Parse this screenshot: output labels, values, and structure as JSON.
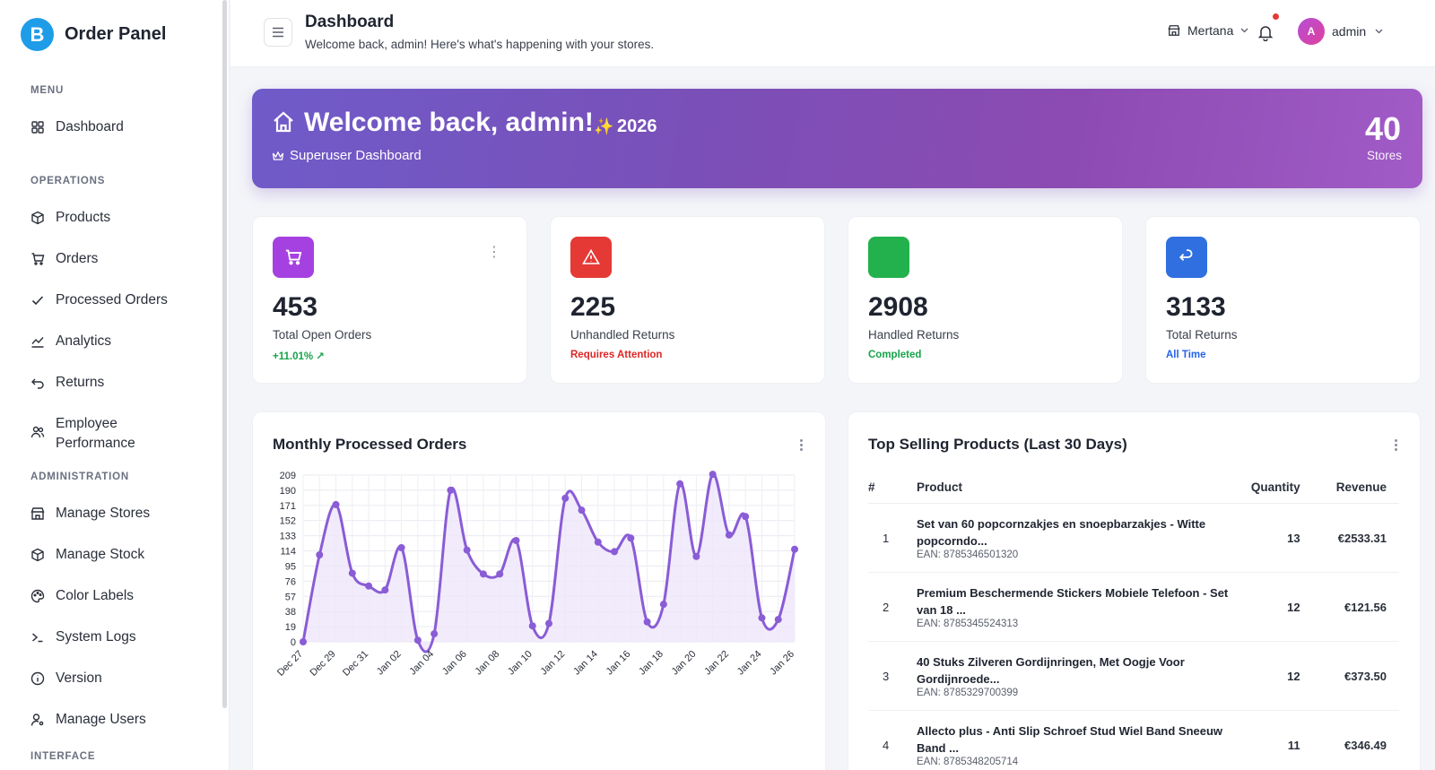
{
  "brand": {
    "logo_letter": "B",
    "name": "Order Panel"
  },
  "sidebar": {
    "sections": [
      {
        "label": "MENU"
      },
      {
        "label": "OPERATIONS"
      },
      {
        "label": "ADMINISTRATION"
      },
      {
        "label": "INTERFACE"
      }
    ],
    "items": [
      {
        "label": "Dashboard",
        "icon": "grid-icon"
      },
      {
        "label": "Products",
        "icon": "box-icon"
      },
      {
        "label": "Orders",
        "icon": "cart-icon"
      },
      {
        "label": "Processed Orders",
        "icon": "check-icon"
      },
      {
        "label": "Analytics",
        "icon": "chart-icon"
      },
      {
        "label": "Returns",
        "icon": "return-icon"
      },
      {
        "label": "Employee Performance",
        "icon": "users-icon"
      },
      {
        "label": "Manage Stores",
        "icon": "store-icon"
      },
      {
        "label": "Manage Stock",
        "icon": "box-icon"
      },
      {
        "label": "Color Labels",
        "icon": "palette-icon"
      },
      {
        "label": "System Logs",
        "icon": "terminal-icon"
      },
      {
        "label": "Version",
        "icon": "info-icon"
      },
      {
        "label": "Manage Users",
        "icon": "user-gear-icon"
      }
    ]
  },
  "header": {
    "title": "Dashboard",
    "subtitle": "Welcome back, admin! Here's what's happening with your stores.",
    "store": "Mertana",
    "user_initial": "A",
    "user": "admin"
  },
  "banner": {
    "title": "Welcome back, admin!",
    "sparkle": "✨",
    "year": "2026",
    "subtitle": "Superuser Dashboard",
    "count": "40",
    "count_label": "Stores"
  },
  "stats": [
    {
      "value": "453",
      "label": "Total Open Orders",
      "note": "+11.01% ↗",
      "note_color": "#16a34a",
      "icon_bg": "#a541e0"
    },
    {
      "value": "225",
      "label": "Unhandled Returns",
      "note": "Requires Attention",
      "note_color": "#dc2626",
      "icon_bg": "#e53935"
    },
    {
      "value": "2908",
      "label": "Handled Returns",
      "note": "Completed",
      "note_color": "#16a34a",
      "icon_bg": "#22b14c"
    },
    {
      "value": "3133",
      "label": "Total Returns",
      "note": "All Time",
      "note_color": "#2563eb",
      "icon_bg": "#2f6fe0"
    }
  ],
  "chart_panel": {
    "title": "Monthly Processed Orders"
  },
  "chart_data": {
    "type": "line",
    "title": "Monthly Processed Orders",
    "xlabel": "",
    "ylabel": "",
    "yticks": [
      0,
      19,
      38,
      57,
      76,
      95,
      114,
      133,
      152,
      171,
      190,
      209
    ],
    "ylim": [
      0,
      209
    ],
    "xticks": [
      "Dec 27",
      "Dec 29",
      "Dec 31",
      "Jan 02",
      "Jan 04",
      "Jan 06",
      "Jan 08",
      "Jan 10",
      "Jan 12",
      "Jan 14",
      "Jan 16",
      "Jan 18",
      "Jan 20",
      "Jan 22",
      "Jan 24",
      "Jan 26"
    ],
    "x": [
      "Dec 27",
      "Dec 28",
      "Dec 29",
      "Dec 30",
      "Dec 31",
      "Jan 01",
      "Jan 02",
      "Jan 03",
      "Jan 04",
      "Jan 05",
      "Jan 06",
      "Jan 07",
      "Jan 08",
      "Jan 09",
      "Jan 10",
      "Jan 11",
      "Jan 12",
      "Jan 13",
      "Jan 14",
      "Jan 15",
      "Jan 16",
      "Jan 17",
      "Jan 18",
      "Jan 19",
      "Jan 20",
      "Jan 21",
      "Jan 22",
      "Jan 23",
      "Jan 24",
      "Jan 25",
      "Jan 26"
    ],
    "values": [
      0,
      109,
      172,
      86,
      70,
      65,
      118,
      2,
      10,
      190,
      115,
      85,
      85,
      127,
      20,
      23,
      180,
      165,
      125,
      113,
      130,
      25,
      47,
      198,
      107,
      210,
      134,
      157,
      30,
      28,
      116
    ],
    "color": "#8a5cd6",
    "fill": "#ede6fa",
    "grid": true
  },
  "top_products": {
    "title": "Top Selling Products (Last 30 Days)",
    "columns": [
      "#",
      "Product",
      "Quantity",
      "Revenue"
    ],
    "rows": [
      {
        "rank": "1",
        "name": "Set van 60 popcornzakjes en snoepbarzakjes - Witte popcorndo...",
        "ean": "EAN: 8785346501320",
        "qty": "13",
        "revenue": "€2533.31"
      },
      {
        "rank": "2",
        "name": "Premium Beschermende Stickers Mobiele Telefoon - Set van 18 ...",
        "ean": "EAN: 8785345524313",
        "qty": "12",
        "revenue": "€121.56"
      },
      {
        "rank": "3",
        "name": "40 Stuks Zilveren Gordijnringen, Met Oogje Voor Gordijnroede...",
        "ean": "EAN: 8785329700399",
        "qty": "12",
        "revenue": "€373.50"
      },
      {
        "rank": "4",
        "name": "Allecto plus - Anti Slip Schroef Stud Wiel Band Sneeuw Band ...",
        "ean": "EAN: 8785348205714",
        "qty": "11",
        "revenue": "€346.49"
      }
    ]
  }
}
